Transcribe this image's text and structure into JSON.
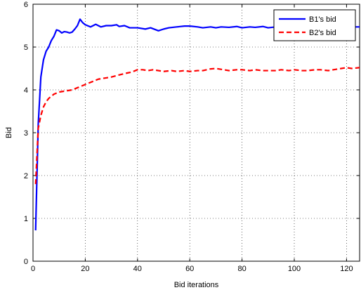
{
  "chart_data": {
    "type": "line",
    "xlabel": "Bid iterations",
    "ylabel": "Bid",
    "xlim": [
      0,
      125
    ],
    "ylim": [
      0,
      6
    ],
    "xticks": [
      0,
      20,
      40,
      60,
      80,
      100,
      120
    ],
    "yticks": [
      0,
      1,
      2,
      3,
      4,
      5,
      6
    ],
    "grid": true,
    "legend_position": "top-right",
    "series": [
      {
        "name": "B1's bid",
        "color": "#0000ff",
        "style": "solid",
        "points": [
          [
            1,
            0.72
          ],
          [
            2,
            3.2
          ],
          [
            3,
            4.3
          ],
          [
            4,
            4.7
          ],
          [
            5,
            4.9
          ],
          [
            6,
            5.0
          ],
          [
            7,
            5.15
          ],
          [
            8,
            5.25
          ],
          [
            9,
            5.4
          ],
          [
            10,
            5.38
          ],
          [
            11,
            5.33
          ],
          [
            12,
            5.36
          ],
          [
            13,
            5.35
          ],
          [
            14,
            5.33
          ],
          [
            15,
            5.35
          ],
          [
            16,
            5.42
          ],
          [
            17,
            5.5
          ],
          [
            18,
            5.65
          ],
          [
            19,
            5.57
          ],
          [
            20,
            5.52
          ],
          [
            22,
            5.47
          ],
          [
            24,
            5.53
          ],
          [
            26,
            5.47
          ],
          [
            28,
            5.5
          ],
          [
            30,
            5.5
          ],
          [
            32,
            5.52
          ],
          [
            33,
            5.48
          ],
          [
            35,
            5.5
          ],
          [
            37,
            5.45
          ],
          [
            40,
            5.45
          ],
          [
            43,
            5.42
          ],
          [
            45,
            5.45
          ],
          [
            48,
            5.38
          ],
          [
            50,
            5.42
          ],
          [
            52,
            5.45
          ],
          [
            55,
            5.47
          ],
          [
            58,
            5.49
          ],
          [
            60,
            5.49
          ],
          [
            63,
            5.47
          ],
          [
            65,
            5.45
          ],
          [
            68,
            5.47
          ],
          [
            70,
            5.45
          ],
          [
            72,
            5.47
          ],
          [
            75,
            5.46
          ],
          [
            78,
            5.48
          ],
          [
            80,
            5.45
          ],
          [
            83,
            5.47
          ],
          [
            85,
            5.46
          ],
          [
            88,
            5.48
          ],
          [
            90,
            5.45
          ],
          [
            93,
            5.47
          ],
          [
            95,
            5.47
          ],
          [
            98,
            5.46
          ],
          [
            100,
            5.47
          ],
          [
            103,
            5.46
          ],
          [
            105,
            5.47
          ],
          [
            108,
            5.46
          ],
          [
            110,
            5.47
          ],
          [
            113,
            5.46
          ],
          [
            115,
            5.47
          ],
          [
            118,
            5.46
          ],
          [
            120,
            5.47
          ],
          [
            122,
            5.47
          ],
          [
            125,
            5.47
          ]
        ]
      },
      {
        "name": "B2's bid",
        "color": "#ff0000",
        "style": "dashed",
        "points": [
          [
            1,
            1.8
          ],
          [
            2,
            3.1
          ],
          [
            3,
            3.4
          ],
          [
            4,
            3.6
          ],
          [
            5,
            3.72
          ],
          [
            6,
            3.8
          ],
          [
            7,
            3.85
          ],
          [
            8,
            3.9
          ],
          [
            10,
            3.95
          ],
          [
            12,
            3.97
          ],
          [
            15,
            4.0
          ],
          [
            17,
            4.05
          ],
          [
            19,
            4.1
          ],
          [
            21,
            4.15
          ],
          [
            23,
            4.2
          ],
          [
            25,
            4.25
          ],
          [
            28,
            4.28
          ],
          [
            30,
            4.3
          ],
          [
            33,
            4.35
          ],
          [
            35,
            4.38
          ],
          [
            38,
            4.42
          ],
          [
            40,
            4.47
          ],
          [
            42,
            4.47
          ],
          [
            44,
            4.45
          ],
          [
            46,
            4.47
          ],
          [
            48,
            4.45
          ],
          [
            50,
            4.43
          ],
          [
            53,
            4.45
          ],
          [
            55,
            4.43
          ],
          [
            58,
            4.45
          ],
          [
            60,
            4.43
          ],
          [
            63,
            4.45
          ],
          [
            65,
            4.45
          ],
          [
            68,
            4.49
          ],
          [
            70,
            4.5
          ],
          [
            73,
            4.47
          ],
          [
            75,
            4.45
          ],
          [
            78,
            4.47
          ],
          [
            80,
            4.47
          ],
          [
            83,
            4.45
          ],
          [
            85,
            4.47
          ],
          [
            88,
            4.45
          ],
          [
            90,
            4.45
          ],
          [
            93,
            4.45
          ],
          [
            95,
            4.47
          ],
          [
            98,
            4.45
          ],
          [
            100,
            4.47
          ],
          [
            103,
            4.45
          ],
          [
            105,
            4.45
          ],
          [
            108,
            4.47
          ],
          [
            110,
            4.47
          ],
          [
            113,
            4.45
          ],
          [
            115,
            4.47
          ],
          [
            118,
            4.5
          ],
          [
            120,
            4.52
          ],
          [
            122,
            4.5
          ],
          [
            125,
            4.52
          ]
        ]
      }
    ]
  }
}
